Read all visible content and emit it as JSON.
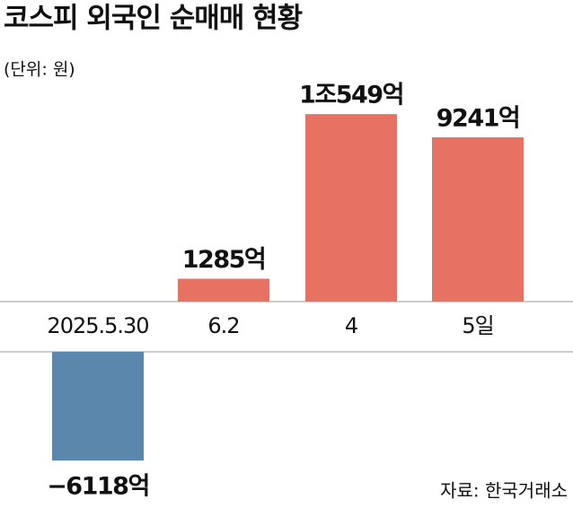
{
  "chart_data": {
    "type": "bar",
    "title": "코스피 외국인 순매매 현황",
    "subtitle": "(단위: 원)",
    "categories": [
      "2025.5.30",
      "6.2",
      "4",
      "5일"
    ],
    "values": [
      -6118,
      1285,
      10549,
      9241
    ],
    "value_labels": [
      "−6118억",
      "1285억",
      "1조549억",
      "9241억"
    ],
    "color": "#e87262",
    "negative_color": "#5b87ad",
    "source": "자료: 한국거래소"
  }
}
